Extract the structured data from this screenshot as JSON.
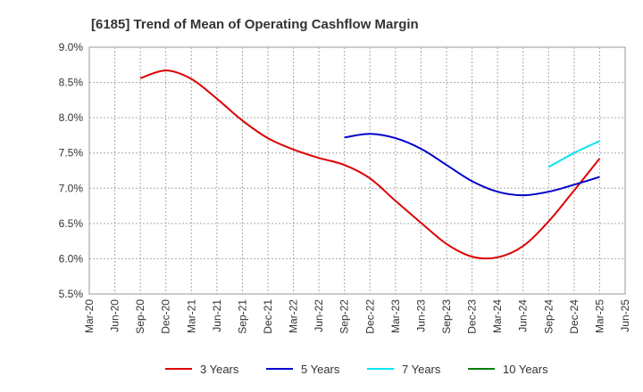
{
  "chart_data": {
    "type": "line",
    "title": "[6185]  Trend of Mean of Operating Cashflow Margin",
    "xlabel": "",
    "ylabel": "",
    "x_ticks": [
      "Mar-20",
      "Jun-20",
      "Sep-20",
      "Dec-20",
      "Mar-21",
      "Jun-21",
      "Sep-21",
      "Dec-21",
      "Mar-22",
      "Jun-22",
      "Sep-22",
      "Dec-22",
      "Mar-23",
      "Jun-23",
      "Sep-23",
      "Dec-23",
      "Mar-24",
      "Jun-24",
      "Sep-24",
      "Dec-24",
      "Mar-25",
      "Jun-25"
    ],
    "y_ticks": [
      "5.5%",
      "6.0%",
      "6.5%",
      "7.0%",
      "7.5%",
      "8.0%",
      "8.5%",
      "9.0%"
    ],
    "ylim": [
      5.5,
      9.0
    ],
    "grid": true,
    "legend_position": "bottom",
    "series": [
      {
        "name": "3 Years",
        "color": "#dd0000",
        "x": [
          "Sep-20",
          "Dec-20",
          "Mar-21",
          "Jun-21",
          "Sep-21",
          "Dec-21",
          "Mar-22",
          "Jun-22",
          "Sep-22",
          "Dec-22",
          "Mar-23",
          "Jun-23",
          "Sep-23",
          "Dec-23",
          "Mar-24",
          "Jun-24",
          "Sep-24",
          "Dec-24",
          "Mar-25"
        ],
        "values": [
          8.56,
          8.67,
          8.55,
          8.27,
          7.96,
          7.71,
          7.55,
          7.43,
          7.33,
          7.14,
          6.82,
          6.51,
          6.21,
          6.03,
          6.02,
          6.18,
          6.53,
          6.97,
          7.42
        ]
      },
      {
        "name": "5 Years",
        "color": "#0000cc",
        "x": [
          "Sep-22",
          "Dec-22",
          "Mar-23",
          "Jun-23",
          "Sep-23",
          "Dec-23",
          "Mar-24",
          "Jun-24",
          "Sep-24",
          "Dec-24",
          "Mar-25"
        ],
        "values": [
          7.72,
          7.77,
          7.71,
          7.56,
          7.33,
          7.1,
          6.95,
          6.9,
          6.95,
          7.05,
          7.16
        ]
      },
      {
        "name": "7 Years",
        "color": "#00e5ee",
        "x": [
          "Sep-24",
          "Dec-24",
          "Mar-25"
        ],
        "values": [
          7.3,
          7.5,
          7.67
        ]
      },
      {
        "name": "10 Years",
        "color": "#008000",
        "x": [],
        "values": []
      }
    ]
  }
}
